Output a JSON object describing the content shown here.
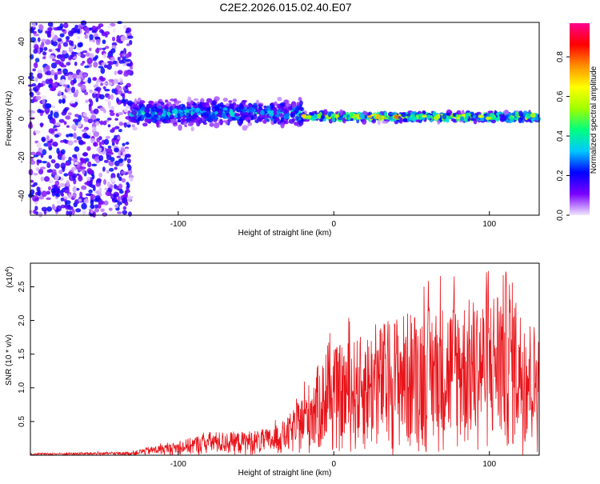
{
  "title": "C2E2.2026.015.02.40.E07",
  "chart_data": [
    {
      "type": "heatmap",
      "xlabel": "Height of straight line (km)",
      "ylabel": "Frequency (Hz)",
      "xlim": [
        -195,
        132
      ],
      "ylim": [
        -50,
        50
      ],
      "xticks": [
        -100,
        0,
        100
      ],
      "yticks": [
        -40,
        -20,
        0,
        20,
        40
      ],
      "colorbar": {
        "label": "Normalized spectral amplitude",
        "range": [
          0,
          0.97
        ],
        "ticks": [
          0.0,
          0.2,
          0.4,
          0.6,
          0.8
        ],
        "colors": [
          "#f0e6ff",
          "#7a00ff",
          "#0000ff",
          "#00c8ff",
          "#00ff80",
          "#a0ff00",
          "#ffff00",
          "#ff9000",
          "#ff0000",
          "#ff0090"
        ]
      },
      "regions": [
        {
          "x_range": [
            -195,
            -130
          ],
          "freq_spread": 50,
          "amplitude": 0.12,
          "note_type": "scattered noise"
        },
        {
          "x_range": [
            -130,
            -20
          ],
          "freq_center": 3,
          "freq_spread": 9,
          "amplitude": 0.3
        },
        {
          "x_range": [
            -20,
            132
          ],
          "freq_center": 1,
          "freq_spread": 3,
          "amplitude": 0.55
        }
      ]
    },
    {
      "type": "line",
      "xlabel": "Height of straight line (km)",
      "ylabel": "SNR (10 * v/v)",
      "yscale_label": "(x10",
      "yscale_exp": "4",
      "yscale_close": ")",
      "xlim": [
        -195,
        132
      ],
      "ylim": [
        0,
        2.85
      ],
      "xticks": [
        -100,
        0,
        100
      ],
      "yticks": [
        0.5,
        1.0,
        1.5,
        2.0,
        2.5
      ],
      "color": "#e8141a",
      "envelope": [
        {
          "x": -195,
          "y": 0.03
        },
        {
          "x": -130,
          "y": 0.05
        },
        {
          "x": -120,
          "y": 0.12
        },
        {
          "x": -100,
          "y": 0.2
        },
        {
          "x": -80,
          "y": 0.35
        },
        {
          "x": -60,
          "y": 0.35
        },
        {
          "x": -40,
          "y": 0.4
        },
        {
          "x": -30,
          "y": 0.55
        },
        {
          "x": -20,
          "y": 0.9
        },
        {
          "x": -10,
          "y": 1.35
        },
        {
          "x": 0,
          "y": 1.6
        },
        {
          "x": 20,
          "y": 1.8
        },
        {
          "x": 40,
          "y": 2.1
        },
        {
          "x": 60,
          "y": 2.2
        },
        {
          "x": 80,
          "y": 2.3
        },
        {
          "x": 100,
          "y": 2.4
        },
        {
          "x": 112,
          "y": 2.8
        },
        {
          "x": 120,
          "y": 2.2
        },
        {
          "x": 132,
          "y": 1.9
        }
      ]
    }
  ]
}
